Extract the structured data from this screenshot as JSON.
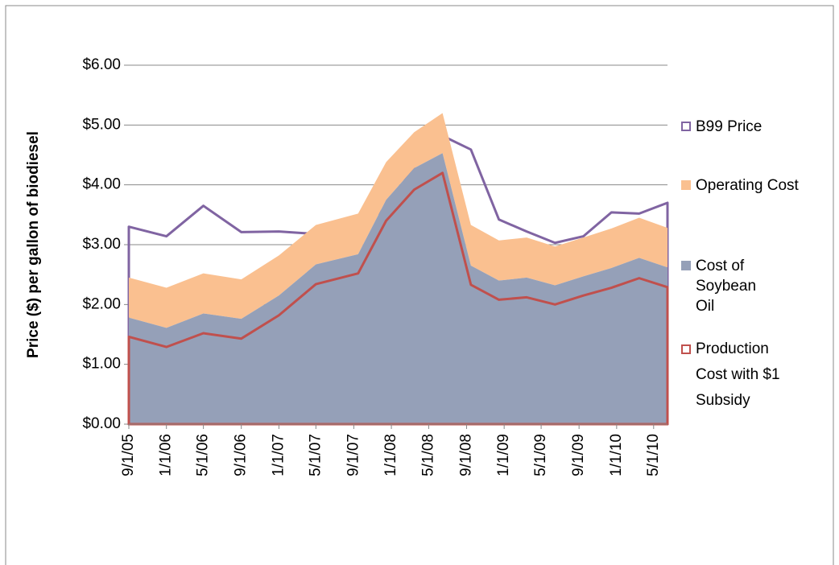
{
  "chart_data": {
    "type": "area",
    "y_label": "Price ($) per gallon  of biodiesel",
    "x": [
      "9/1/05",
      "1/1/06",
      "5/1/06",
      "9/1/06",
      "1/1/07",
      "5/1/07",
      "9/15/07",
      "12/15/07",
      "3/15/08",
      "6/15/08",
      "9/15/08",
      "12/15/08",
      "3/15/09",
      "6/15/09",
      "9/15/09",
      "12/15/09",
      "3/15/10",
      "6/15/10"
    ],
    "series": [
      {
        "name": "B99 Price",
        "color": "#8064a2",
        "fill": false,
        "values": [
          3.3,
          3.14,
          3.65,
          3.21,
          3.22,
          3.18,
          3.28,
          3.62,
          4.3,
          4.82,
          4.59,
          3.42,
          3.22,
          3.03,
          3.14,
          3.54,
          3.52,
          3.7
        ]
      },
      {
        "name": "Operating Cost",
        "color": "#fac090",
        "fill": true,
        "stacked": true,
        "values": [
          0.67,
          0.67,
          0.67,
          0.66,
          0.67,
          0.66,
          0.68,
          0.63,
          0.6,
          0.67,
          0.68,
          0.67,
          0.67,
          0.65,
          0.65,
          0.66,
          0.67,
          0.66
        ]
      },
      {
        "name": "Cost of Soybean Oil",
        "color": "#95a0b8",
        "fill": true,
        "stacked": true,
        "values": [
          1.78,
          1.61,
          1.85,
          1.76,
          2.15,
          2.67,
          2.84,
          3.75,
          4.28,
          4.53,
          2.65,
          2.4,
          2.45,
          2.32,
          2.47,
          2.61,
          2.78,
          2.62
        ]
      },
      {
        "name": "Production Cost with $1 Subsidy",
        "color": "#c0504d",
        "fill": false,
        "values": [
          1.46,
          1.29,
          1.52,
          1.43,
          1.82,
          2.34,
          2.52,
          3.4,
          3.92,
          4.2,
          2.33,
          2.08,
          2.12,
          2.0,
          2.15,
          2.28,
          2.44,
          2.29
        ]
      }
    ],
    "xlim": [
      "9/1/05",
      "6/15/10"
    ],
    "xticks": [
      "9/1/05",
      "1/1/06",
      "5/1/06",
      "9/1/06",
      "1/1/07",
      "5/1/07",
      "9/1/07",
      "1/1/08",
      "5/1/08",
      "9/1/08",
      "1/1/09",
      "5/1/09",
      "9/1/09",
      "1/1/10",
      "5/1/10"
    ],
    "ylim": [
      0,
      6
    ],
    "yticks": [
      {
        "value": 0,
        "label": "$0.00"
      },
      {
        "value": 1,
        "label": "$1.00"
      },
      {
        "value": 2,
        "label": "$2.00"
      },
      {
        "value": 3,
        "label": "$3.00"
      },
      {
        "value": 4,
        "label": "$4.00"
      },
      {
        "value": 5,
        "label": "$5.00"
      },
      {
        "value": 6,
        "label": "$6.00"
      }
    ],
    "grid": true,
    "legend": "right"
  }
}
